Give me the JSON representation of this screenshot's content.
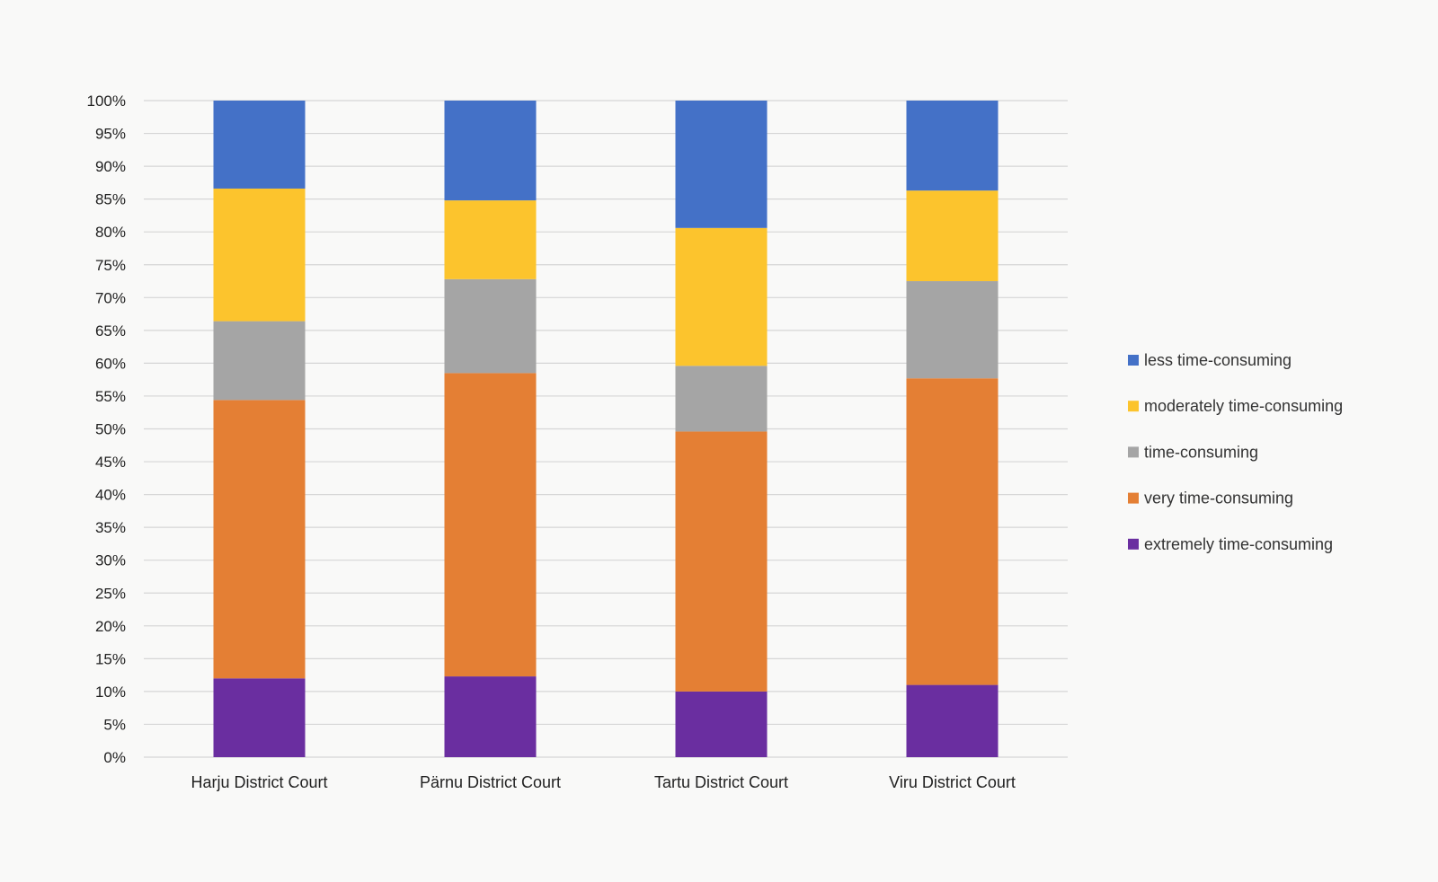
{
  "chart_data": {
    "type": "bar",
    "stacked": true,
    "normalized": true,
    "categories": [
      "Harju District Court",
      "Pärnu District Court",
      "Tartu District Court",
      "Viru District Court"
    ],
    "series": [
      {
        "name": "extremely time-consuming",
        "color": "#6a2ea0",
        "values": [
          12,
          12.3,
          10,
          11
        ]
      },
      {
        "name": "very time-consuming",
        "color": "#e47f34",
        "values": [
          42.4,
          46.2,
          39.6,
          46.7
        ]
      },
      {
        "name": "time-consuming",
        "color": "#a5a5a5",
        "values": [
          12,
          14.3,
          10,
          14.8
        ]
      },
      {
        "name": "moderately time-consuming",
        "color": "#fcc42d",
        "values": [
          20.2,
          12,
          21,
          13.8
        ]
      },
      {
        "name": "less time-consuming",
        "color": "#4471c7",
        "values": [
          13.4,
          15.2,
          19.4,
          13.7
        ]
      }
    ],
    "legend_order": [
      "less time-consuming",
      "moderately time-consuming",
      "time-consuming",
      "very time-consuming",
      "extremely time-consuming"
    ],
    "y_ticks": [
      "0%",
      "5%",
      "10%",
      "15%",
      "20%",
      "25%",
      "30%",
      "35%",
      "40%",
      "45%",
      "50%",
      "55%",
      "60%",
      "65%",
      "70%",
      "75%",
      "80%",
      "85%",
      "90%",
      "95%",
      "100%"
    ],
    "ylim": [
      0,
      100
    ],
    "title": "",
    "xlabel": "",
    "ylabel": "",
    "grid": true,
    "legend_position": "right"
  }
}
